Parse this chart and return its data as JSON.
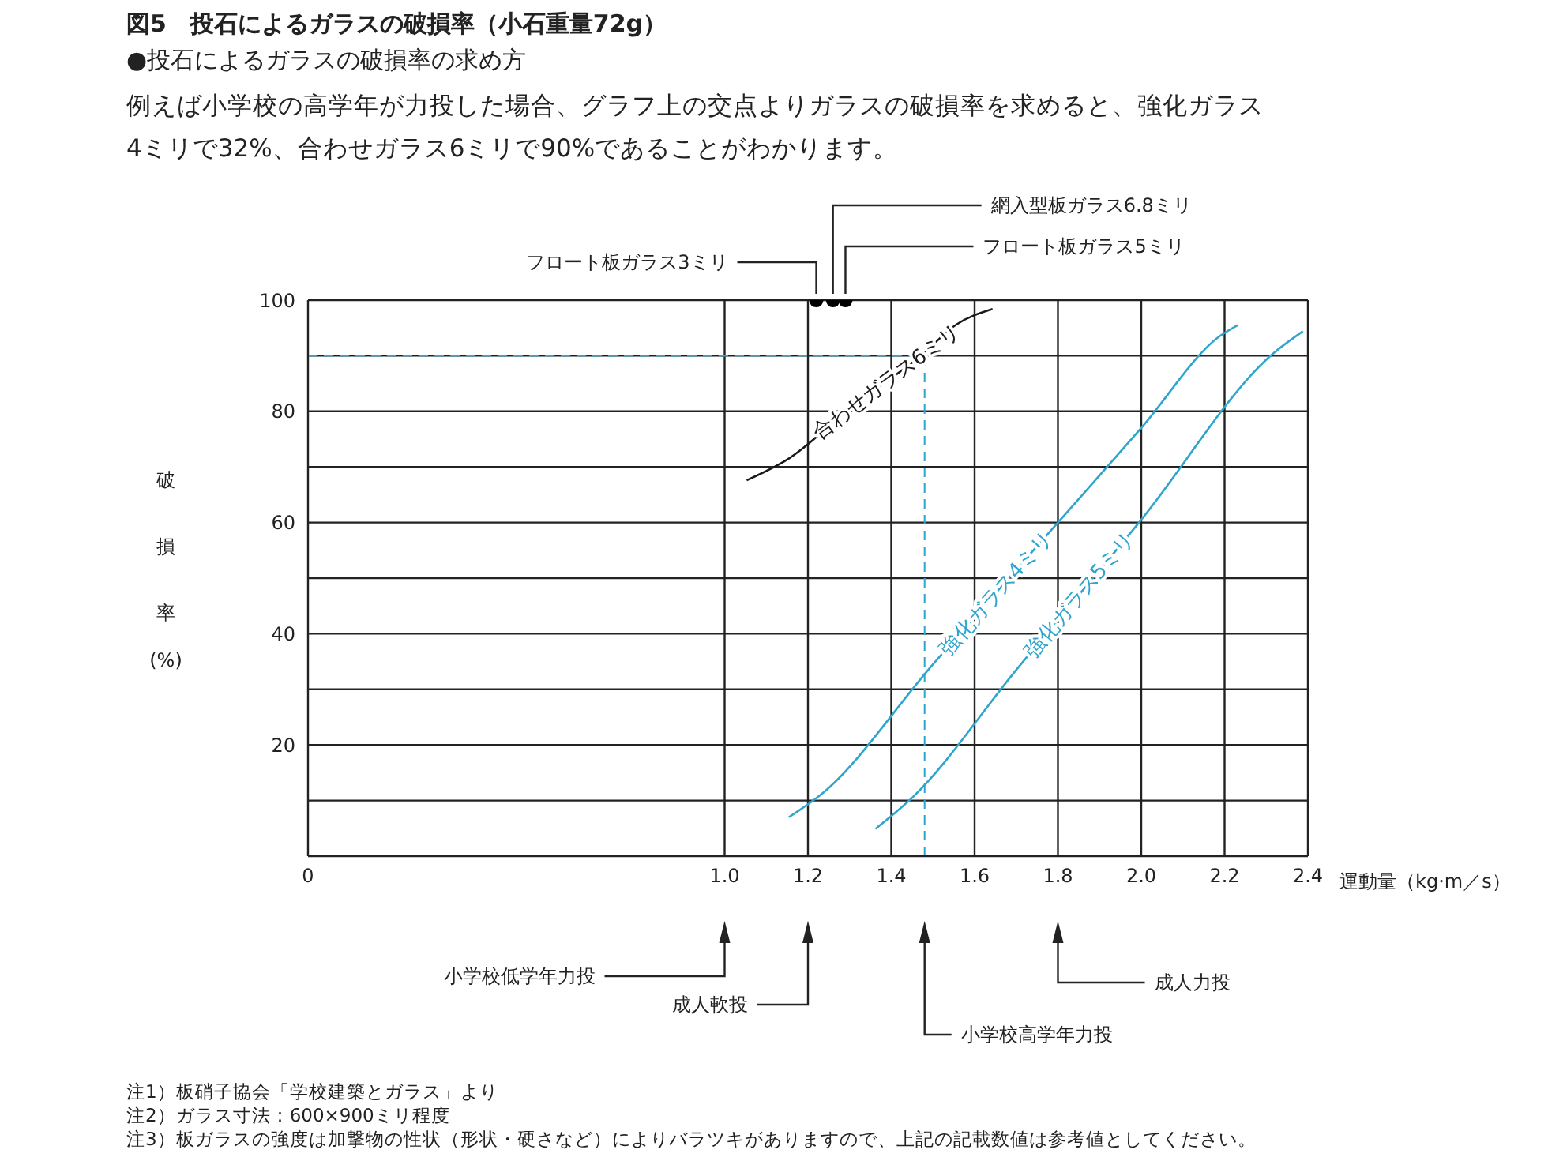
{
  "chart_data": {
    "type": "line",
    "title": "図5　投石によるガラスの破損率（小石重量72g）",
    "subtitle": "●投石によるガラスの破損率の求め方",
    "xlabel": "運動量（kg·m／s）",
    "ylabel": "破損率(%)",
    "xlim": [
      0,
      2.4
    ],
    "xticks": [
      0,
      {
        "value": 1.0,
        "label": "1.0"
      },
      1.2,
      1.4,
      1.6,
      1.8,
      {
        "value": 2.0,
        "label": "2.0"
      },
      2.2,
      2.4
    ],
    "ylim": [
      0,
      100
    ],
    "yticks": [
      {
        "value": 10,
        "label": null
      },
      20,
      {
        "value": 30,
        "label": null
      },
      40,
      {
        "value": 50,
        "label": null
      },
      60,
      {
        "value": 70,
        "label": null
      },
      80,
      {
        "value": 90,
        "label": null
      },
      100
    ],
    "grid": true,
    "legend": false,
    "marker": "none",
    "line_style": "solid",
    "series": [
      {
        "name": "合わせガラス6ミリ",
        "color": "#1a1a1a",
        "x": [
          1.053,
          1.154,
          1.3,
          1.474,
          1.556,
          1.643
        ],
        "values": [
          67.6,
          71.5,
          80.5,
          90.2,
          95.6,
          98.4
        ]
      },
      {
        "name": "強化ガラス4ミリ",
        "color": "#2fa4cc",
        "x": [
          1.154,
          1.23,
          1.5,
          1.8,
          2.0,
          2.19,
          2.232
        ],
        "values": [
          7,
          11,
          34.5,
          60,
          77,
          93.6,
          95.5
        ]
      },
      {
        "name": "強化ガラス5ミリ",
        "color": "#2fa4cc",
        "x": [
          1.362,
          1.45,
          1.7,
          2.0,
          2.318,
          2.388
        ],
        "values": [
          4.9,
          10.5,
          33.5,
          60.5,
          90.5,
          94.4
        ]
      },
      {
        "type": "scatter",
        "color": "#000000",
        "marker": "circle",
        "x": [
          1.22,
          1.26,
          1.29
        ],
        "values": [
          100,
          100,
          100
        ]
      }
    ],
    "ref_lines": [
      {
        "axis": "y",
        "value": 90,
        "color": "#2fa4cc",
        "line_style": "dashed"
      },
      {
        "axis": "x",
        "value": 1.48,
        "color": "#2fa4cc",
        "line_style": "dashed"
      }
    ],
    "annotations": [
      "例えば小学校の高学年が力投した場合、グラフ上の交点よりガラスの破損率を求めると、強化ガラス",
      "4ミリで32%、合わせガラス6ミリで90%であることがわかります。",
      {
        "text": "フロート板ガラス3ミリ",
        "x": 1.22,
        "y": 100
      },
      {
        "text": "網入型板ガラス6.8ミリ",
        "x": 1.26,
        "y": 100
      },
      {
        "text": "フロート板ガラス5ミリ",
        "x": 1.29,
        "y": 100
      },
      "小学校低学年力投",
      "成人軟投",
      "小学校高学年力投",
      "成人力投",
      "注1）板硝子協会「学校建築とガラス」より",
      "注2）ガラス寸法：600×900ミリ程度",
      "注3）板ガラスの強度は加撃物の性状（形状・硬さなど）によりバラツキがありますので、上記の記載数値は参考値としてください。"
    ]
  }
}
